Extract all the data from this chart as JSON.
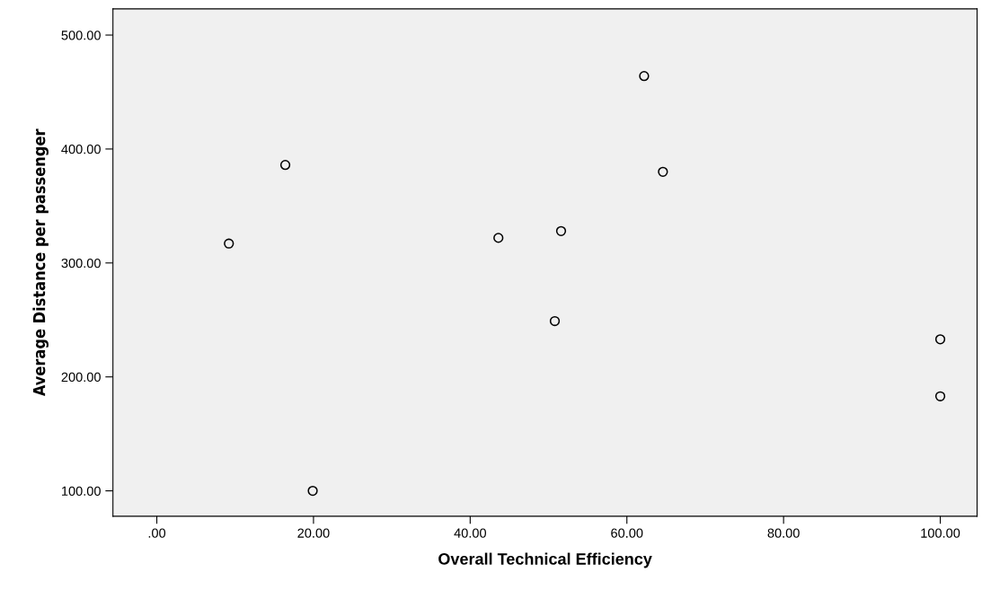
{
  "chart_data": {
    "type": "scatter",
    "xlabel": "Overall Technical Efficiency",
    "ylabel": "Average Distance per passenger",
    "x": [
      9.2,
      16.4,
      19.9,
      43.6,
      51.6,
      50.8,
      62.2,
      64.6,
      100,
      100
    ],
    "series": [
      {
        "color": "#000000",
        "values": [
          317,
          386,
          100,
          322,
          328,
          249,
          464,
          380,
          233,
          183
        ]
      }
    ],
    "marker": "circle",
    "grid": false,
    "legend": false,
    "xlim": [
      -5.6,
      104.7
    ],
    "ylim": [
      77.7,
      523
    ],
    "xticks": [
      {
        "value": 0,
        "label": ".00"
      },
      {
        "value": 20,
        "label": "20.00"
      },
      {
        "value": 40,
        "label": "40.00"
      },
      {
        "value": 60,
        "label": "60.00"
      },
      {
        "value": 80,
        "label": "80.00"
      },
      {
        "value": 100,
        "label": "100.00"
      }
    ],
    "yticks": [
      {
        "value": 100,
        "label": "100.00"
      },
      {
        "value": 200,
        "label": "200.00"
      },
      {
        "value": 300,
        "label": "300.00"
      },
      {
        "value": 400,
        "label": "400.00"
      },
      {
        "value": 500,
        "label": "500.00"
      }
    ]
  }
}
